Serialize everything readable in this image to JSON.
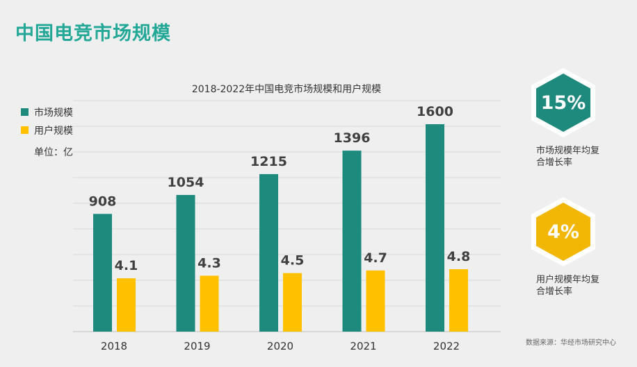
{
  "page_title": "中国电竞市场规模",
  "unit_label": "单位：亿",
  "source_note": "数据来源：华经市场研究中心",
  "colors": {
    "teal": "#1e8a7e",
    "yellow": "#ffc000",
    "title": "#23a796"
  },
  "kpis": [
    {
      "value": "15%",
      "caption_line1": "市场规模年均复",
      "caption_line2": "合增长率",
      "color": "#1e8a7e"
    },
    {
      "value": "4%",
      "caption_line1": "用户规模年均复",
      "caption_line2": "合增长率",
      "color": "#f2b705"
    }
  ],
  "chart_data": {
    "type": "bar",
    "title": "2018-2022年中国电竞市场规模和用户规模",
    "categories": [
      "2018",
      "2019",
      "2020",
      "2021",
      "2022"
    ],
    "series": [
      {
        "name": "市场规模",
        "color": "#1e8a7e",
        "values": [
          908,
          1054,
          1215,
          1396,
          1600
        ],
        "labels": [
          "908",
          "1054",
          "1215",
          "1396",
          "1600"
        ]
      },
      {
        "name": "用户规模",
        "color": "#ffc000",
        "values": [
          4.1,
          4.3,
          4.5,
          4.7,
          4.8
        ],
        "labels": [
          "4.1",
          "4.3",
          "4.5",
          "4.7",
          "4.8"
        ]
      }
    ],
    "xlabel": "",
    "ylabel": "",
    "grid": true,
    "legend": "top-left"
  }
}
